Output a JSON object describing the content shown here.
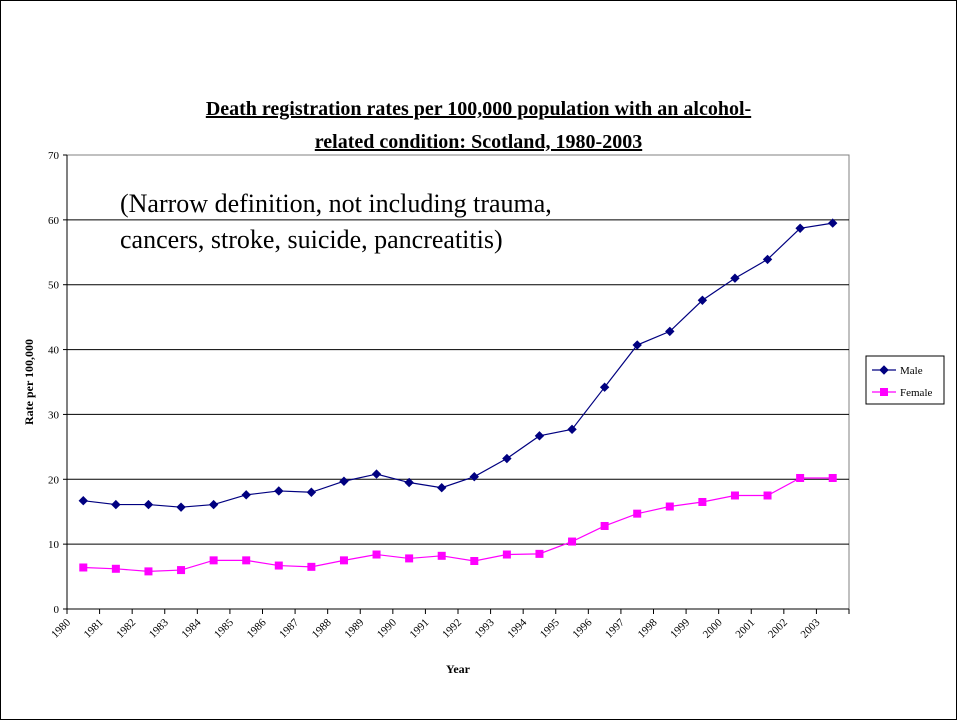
{
  "chart_data": {
    "type": "line",
    "title": [
      "Death registration rates per 100,000 population with an alcohol-",
      "related condition: Scotland, 1980-2003"
    ],
    "annotation": [
      "(Narrow definition, not including trauma,",
      "cancers, stroke, suicide, pancreatitis)"
    ],
    "xlabel": "Year",
    "ylabel": "Rate per 100,000",
    "ylim": [
      0,
      70
    ],
    "yticks": [
      "0",
      "10",
      "20",
      "30",
      "40",
      "50",
      "60",
      "70"
    ],
    "categories": [
      "1980",
      "1981",
      "1982",
      "1983",
      "1984",
      "1985",
      "1986",
      "1987",
      "1988",
      "1989",
      "1990",
      "1991",
      "1992",
      "1993",
      "1994",
      "1995",
      "1996",
      "1997",
      "1998",
      "1999",
      "2000",
      "2001",
      "2002",
      "2003"
    ],
    "grid": "horizontal",
    "legend_position": "right",
    "series": [
      {
        "name": "Male",
        "color": "#000080",
        "marker": "diamond",
        "values": [
          16.7,
          16.1,
          16.1,
          15.7,
          16.1,
          17.6,
          18.2,
          18.0,
          19.7,
          20.8,
          19.5,
          18.7,
          20.4,
          23.2,
          26.7,
          27.7,
          34.2,
          40.7,
          42.8,
          47.6,
          51.0,
          53.9,
          58.7,
          59.5
        ]
      },
      {
        "name": "Female",
        "color": "#ff00ff",
        "marker": "square",
        "values": [
          6.4,
          6.2,
          5.8,
          6.0,
          7.5,
          7.5,
          6.7,
          6.5,
          7.5,
          8.4,
          7.8,
          8.2,
          7.4,
          8.4,
          8.5,
          10.4,
          12.8,
          14.7,
          15.8,
          16.5,
          17.5,
          17.5,
          20.2,
          20.2
        ]
      }
    ]
  }
}
